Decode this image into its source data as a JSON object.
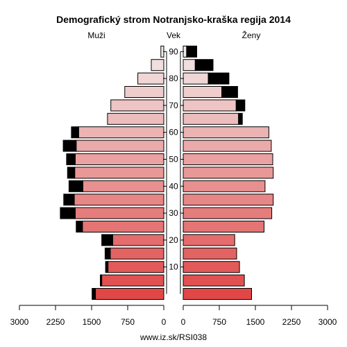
{
  "chart_data": {
    "type": "bar",
    "orientation": "horizontal-population-pyramid",
    "title": "Demografický strom Notranjsko-kraška regija 2014",
    "left_label": "Muži",
    "center_label": "Vek",
    "right_label": "Ženy",
    "footer": "www.iz.sk/RSI038",
    "x_ticks_left": [
      "3000",
      "2250",
      "1500",
      "750",
      "0"
    ],
    "x_ticks_right": [
      "0",
      "750",
      "1500",
      "2250",
      "3000"
    ],
    "x_range": [
      0,
      3000
    ],
    "y_ticks": [
      "10",
      "20",
      "30",
      "40",
      "50",
      "60",
      "70",
      "80",
      "90"
    ],
    "age_groups": [
      "0-4",
      "5-9",
      "10-14",
      "15-19",
      "20-24",
      "25-29",
      "30-34",
      "35-39",
      "40-44",
      "45-49",
      "50-54",
      "55-59",
      "60-64",
      "65-69",
      "70-74",
      "75-79",
      "80-84",
      "85-89",
      "90+"
    ],
    "series": [
      {
        "name": "Muži",
        "side": "left",
        "values": [
          1420,
          1290,
          1160,
          1110,
          1060,
          1690,
          1840,
          1860,
          1680,
          1850,
          1840,
          1820,
          1770,
          1170,
          1100,
          810,
          540,
          260,
          60
        ],
        "excess": [
          70,
          30,
          50,
          110,
          230,
          130,
          310,
          220,
          290,
          150,
          180,
          270,
          150,
          0,
          0,
          0,
          0,
          0,
          0
        ]
      },
      {
        "name": "Ženy",
        "side": "right",
        "values": [
          1420,
          1270,
          1170,
          1110,
          1070,
          1680,
          1840,
          1870,
          1700,
          1870,
          1860,
          1830,
          1780,
          1150,
          1100,
          800,
          520,
          250,
          70
        ],
        "excess": [
          0,
          0,
          0,
          0,
          0,
          0,
          0,
          0,
          0,
          0,
          0,
          0,
          0,
          80,
          180,
          330,
          430,
          370,
          210
        ]
      }
    ],
    "colors": {
      "excess": "#000000",
      "young": "#e04848",
      "old": "#f2e8e8",
      "stroke": "#000000",
      "axis": "#000000"
    },
    "grid": false
  }
}
